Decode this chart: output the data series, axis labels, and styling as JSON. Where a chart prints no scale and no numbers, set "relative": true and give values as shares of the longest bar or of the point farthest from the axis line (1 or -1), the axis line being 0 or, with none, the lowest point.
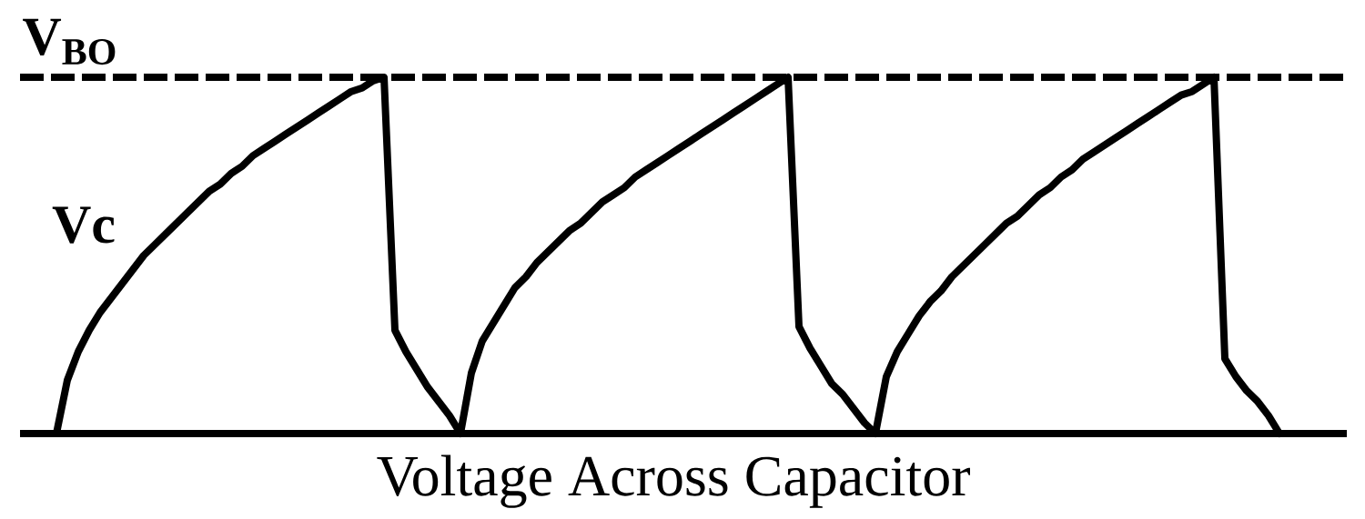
{
  "chart_data": {
    "type": "line",
    "relative": true,
    "xlabel": "Voltage Across Capacitor",
    "categories": [
      null,
      null,
      null,
      null,
      null,
      null,
      null,
      null,
      null,
      null,
      null,
      null,
      null,
      null,
      null,
      null,
      null,
      null,
      null,
      null,
      null,
      null,
      null,
      null,
      null,
      null,
      null,
      null,
      null,
      null,
      null,
      null,
      null,
      null,
      null,
      null,
      null,
      null,
      null,
      null,
      null,
      null,
      null,
      null,
      null,
      null,
      null,
      null,
      null,
      null,
      null,
      null,
      null,
      null,
      null,
      null,
      null,
      null,
      null,
      null,
      null,
      null,
      null,
      null,
      null,
      null,
      null,
      null,
      null,
      null,
      null,
      null,
      null,
      null,
      null,
      null,
      null,
      null,
      null,
      null,
      null,
      null,
      null,
      null,
      null,
      null,
      null,
      null,
      null,
      null,
      null,
      null,
      null,
      null,
      null,
      null,
      null,
      null,
      null,
      null,
      null,
      null,
      null,
      null,
      null,
      null,
      null,
      null,
      null,
      null,
      null,
      null,
      null
    ],
    "series": [
      {
        "name": "Vc",
        "color": "#000000",
        "line_style": "solid",
        "values": [
          0,
          0.15,
          0.23,
          0.29,
          0.34,
          0.38,
          0.42,
          0.46,
          0.5,
          0.53,
          0.56,
          0.59,
          0.62,
          0.65,
          0.68,
          0.7,
          0.73,
          0.75,
          0.78,
          0.8,
          0.82,
          0.84,
          0.86,
          0.88,
          0.9,
          0.92,
          0.94,
          0.96,
          0.97,
          0.99,
          1,
          0.29,
          0.23,
          0.18,
          0.13,
          0.09,
          0.05,
          0,
          0.17,
          0.26,
          0.31,
          0.36,
          0.41,
          0.44,
          0.48,
          0.51,
          0.54,
          0.57,
          0.59,
          0.62,
          0.65,
          0.67,
          0.69,
          0.72,
          0.74,
          0.76,
          0.78,
          0.8,
          0.82,
          0.84,
          0.86,
          0.88,
          0.9,
          0.92,
          0.94,
          0.96,
          0.98,
          1,
          0.3,
          0.24,
          0.19,
          0.14,
          0.11,
          0.07,
          0.03,
          0,
          0.16,
          0.23,
          0.28,
          0.33,
          0.37,
          0.4,
          0.44,
          0.47,
          0.5,
          0.53,
          0.56,
          0.59,
          0.61,
          0.64,
          0.67,
          0.69,
          0.72,
          0.74,
          0.77,
          0.79,
          0.81,
          0.83,
          0.85,
          0.87,
          0.89,
          0.91,
          0.93,
          0.95,
          0.96,
          0.98,
          1,
          0.21,
          0.16,
          0.12,
          0.09,
          0.05,
          0
        ]
      }
    ],
    "ref_lines": [
      {
        "axis": "y",
        "value": 1,
        "label": "V$_{BO}$",
        "color": "#000000",
        "line_style": "dashed"
      }
    ]
  }
}
